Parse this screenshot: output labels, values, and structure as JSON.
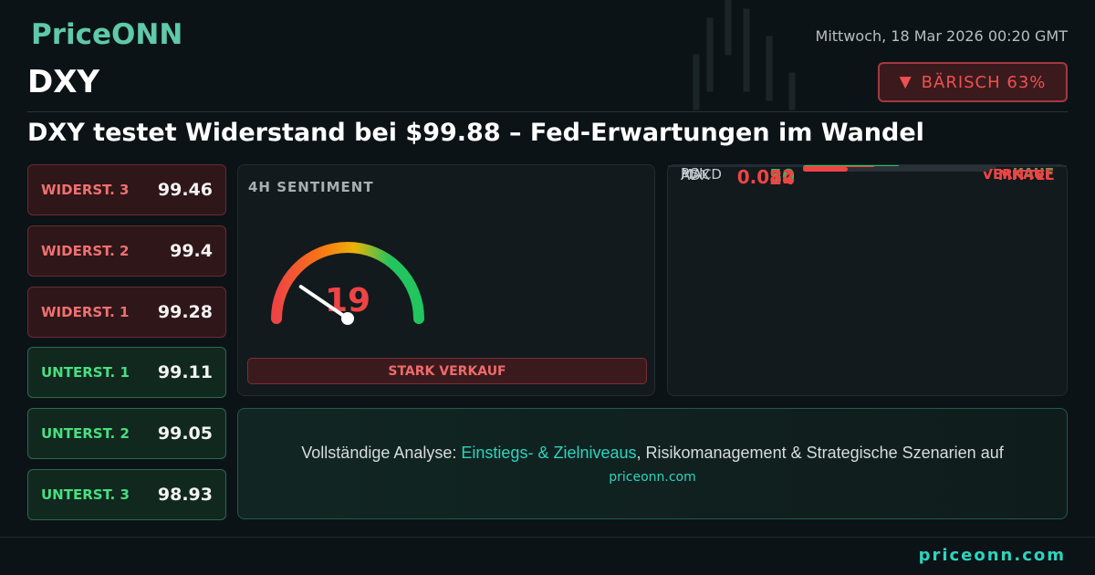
{
  "header": {
    "logo": "PriceONN",
    "date": "Mittwoch, 18 Mar 2026 00:20 GMT",
    "symbol": "DXY",
    "bias": "BÄRISCH 63%",
    "headline": "DXY testet Widerstand bei $99.88 – Fed-Erwartungen im Wandel"
  },
  "levels": [
    {
      "label": "WIDERST. 3",
      "value": 99.46,
      "kind": "resistance"
    },
    {
      "label": "WIDERST. 2",
      "value": 99.4,
      "kind": "resistance"
    },
    {
      "label": "WIDERST. 1",
      "value": 99.28,
      "kind": "resistance"
    },
    {
      "label": "UNTERST. 1",
      "value": 99.11,
      "kind": "support"
    },
    {
      "label": "UNTERST. 2",
      "value": 99.05,
      "kind": "support"
    },
    {
      "label": "UNTERST. 3",
      "value": 98.93,
      "kind": "support"
    }
  ],
  "sentiment": {
    "title": "4H SENTIMENT",
    "value": 19,
    "range": [
      0,
      100
    ],
    "verdict": "STARK VERKAUF"
  },
  "indicators": [
    {
      "name": "RSI",
      "value": 50,
      "signal": "KAUF",
      "color": "#22c55e"
    },
    {
      "name": "MACD",
      "value": 0.082,
      "signal": "VERKAUF",
      "color": "#ef4444"
    },
    {
      "name": "ADX",
      "value": 24,
      "signal": "MITTEL",
      "color": "#ef4444"
    }
  ],
  "analysis": {
    "lead": "Vollständige Analyse: ",
    "highlight": "Einstiegs- & Zielniveaus",
    "rest": ", Risikomanagement & Strategische Szenarien auf",
    "link": "priceonn.com"
  },
  "footer": {
    "link": "priceonn.com"
  }
}
